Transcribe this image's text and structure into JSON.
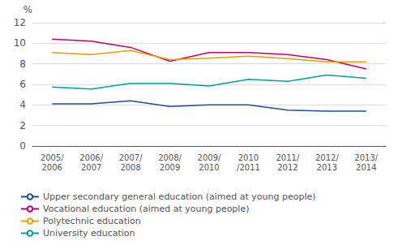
{
  "chart_data": {
    "type": "line",
    "categories": [
      "2005/\n2006",
      "2006/\n2007",
      "2007/\n2008",
      "2008/\n2009",
      "2009/\n2010",
      "2010\n/2011",
      "2011/\n2012",
      "2012/\n2013",
      "2013/\n2014"
    ],
    "series": [
      {
        "name": "Upper secondary general education (aimed at young people)",
        "color": "#1f4e96",
        "values": [
          4.1,
          4.1,
          4.4,
          3.85,
          4.0,
          4.0,
          3.5,
          3.4,
          3.4
        ]
      },
      {
        "name": "Vocational education (aimed at young people)",
        "color": "#c0006a",
        "values": [
          10.4,
          10.2,
          9.6,
          8.25,
          9.1,
          9.1,
          8.9,
          8.4,
          7.5
        ]
      },
      {
        "name": "Polytechnic education",
        "color": "#e8a000",
        "values": [
          9.1,
          8.9,
          9.3,
          8.4,
          8.55,
          8.75,
          8.5,
          8.2,
          8.2
        ]
      },
      {
        "name": "University education",
        "color": "#00a0a0",
        "values": [
          5.75,
          5.55,
          6.1,
          6.1,
          5.85,
          6.5,
          6.3,
          6.9,
          6.6
        ]
      }
    ],
    "ylabel": "%",
    "ylim": [
      0,
      12
    ],
    "yticks": [
      0,
      2,
      4,
      6,
      8,
      10,
      12
    ],
    "grid": true,
    "legend": "bottom"
  }
}
